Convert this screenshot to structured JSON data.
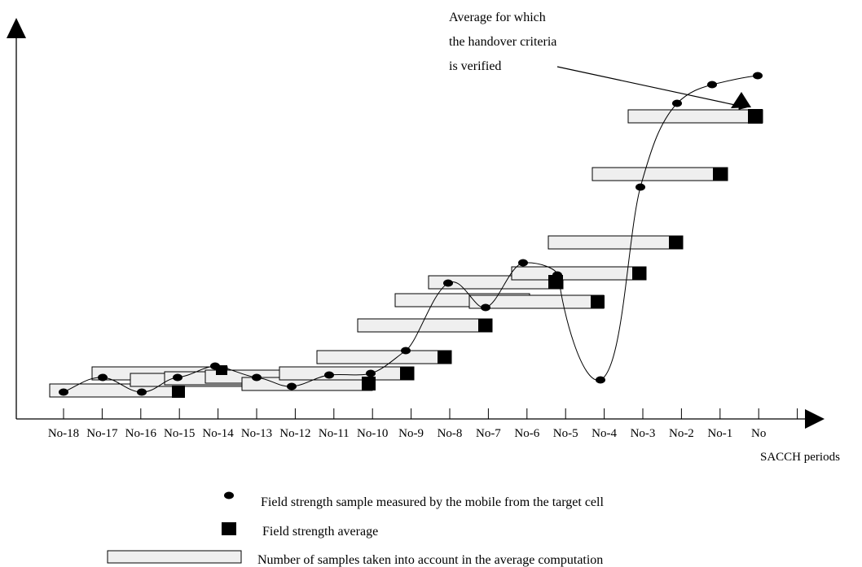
{
  "x_axis_label": "SACCH periods",
  "periods": [
    "No-18",
    "No-17",
    "No-16",
    "No-15",
    "No-14",
    "No-13",
    "No-12",
    "No-11",
    "No-10",
    "No-9",
    "No-8",
    "No-7",
    "No-6",
    "No-5",
    "No-4",
    "No-3",
    "No-2",
    "No-1",
    "No"
  ],
  "annotation": [
    "Average for which",
    "the handover criteria",
    "is verified"
  ],
  "legend": {
    "sample": "Field strength sample measured by the mobile from the target cell",
    "average": "Field strength average",
    "window": "Number of samples taken into account in the average computation"
  }
}
